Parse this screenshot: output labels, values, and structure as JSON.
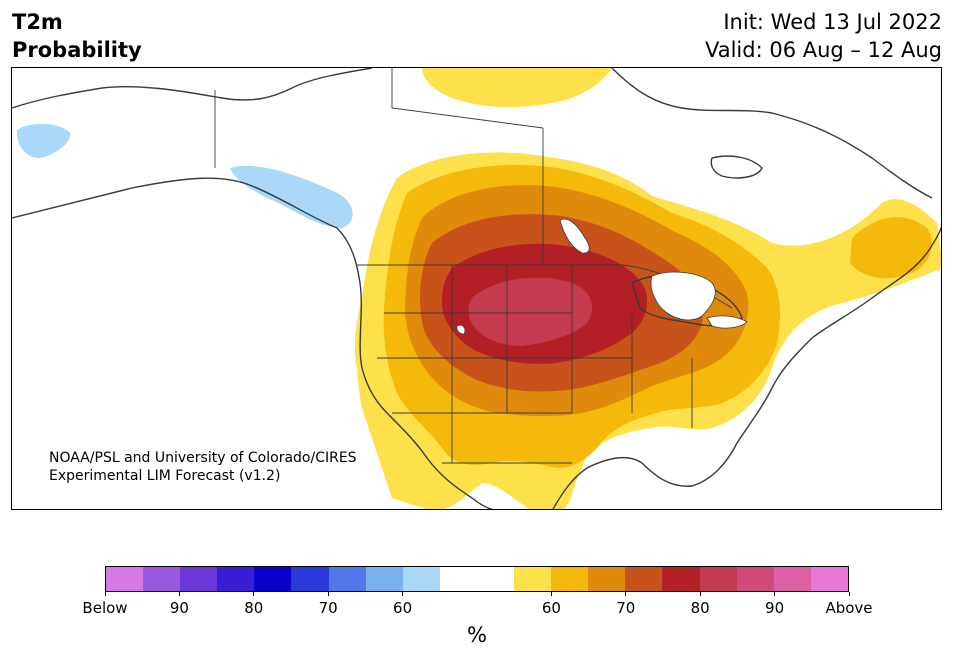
{
  "header": {
    "title_line1": "T2m",
    "title_line2": "Probability",
    "init": "Init: Wed 13 Jul 2022",
    "valid": "Valid: 06 Aug – 12 Aug"
  },
  "map": {
    "region": "North America",
    "credit_line1": "NOAA/PSL and University of Colorado/CIRES",
    "credit_line2": "Experimental LIM Forecast (v1.2)",
    "colors": {
      "land_outline": "#3a3a3a",
      "below_60": "#aad8f8",
      "above_60": "#fee04a",
      "above_65": "#f4b90a",
      "above_70": "#e08a0c",
      "above_75": "#c8531a",
      "above_80": "#b22025",
      "above_85": "#c43a4e"
    }
  },
  "colorbar": {
    "colors": [
      "#d67ae8",
      "#9b58e0",
      "#6a38d8",
      "#3a1ed4",
      "#0a00cc",
      "#2a3ad8",
      "#5078e8",
      "#7ab2f0",
      "#aad8f8",
      "#ffffff",
      "#ffffff",
      "#fee04a",
      "#f4b90a",
      "#e08a0c",
      "#c8531a",
      "#b22025",
      "#c43a4e",
      "#d04a7a",
      "#e060a8",
      "#e878d8"
    ],
    "ticks": [
      {
        "label": "Below",
        "frac": 0.0
      },
      {
        "label": "90",
        "frac": 0.1
      },
      {
        "label": "80",
        "frac": 0.2
      },
      {
        "label": "70",
        "frac": 0.3
      },
      {
        "label": "60",
        "frac": 0.4
      },
      {
        "label": "60",
        "frac": 0.6
      },
      {
        "label": "70",
        "frac": 0.7
      },
      {
        "label": "80",
        "frac": 0.8
      },
      {
        "label": "90",
        "frac": 0.9
      },
      {
        "label": "Above",
        "frac": 1.0
      }
    ],
    "unit": "%"
  }
}
